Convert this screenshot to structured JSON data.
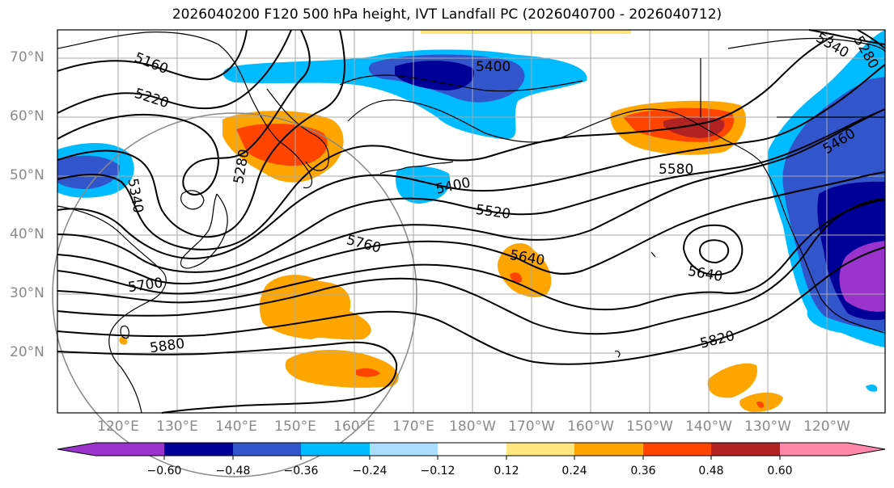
{
  "title": "2026040200 F120 500 hPa height, IVT Landfall PC (2026040700 - 2026040712)",
  "latitude_labels": [
    "70°N",
    "60°N",
    "50°N",
    "40°N",
    "30°N",
    "20°N"
  ],
  "longitude_labels": [
    "120°E",
    "130°E",
    "140°E",
    "150°E",
    "160°E",
    "170°E",
    "180°W",
    "170°W",
    "160°W",
    "150°W",
    "140°W",
    "130°W",
    "120°W"
  ],
  "contour_labels": [
    "5160",
    "5220",
    "5280",
    "5340",
    "5400",
    "5400",
    "5460",
    "5520",
    "5580",
    "5640",
    "5640",
    "5700",
    "5760",
    "5820",
    "5880",
    "5340",
    "5280"
  ],
  "colorbar": {
    "ticks": [
      "−0.60",
      "−0.48",
      "−0.36",
      "−0.24",
      "−0.12",
      "0.12",
      "0.24",
      "0.36",
      "0.48",
      "0.60"
    ],
    "colors": [
      "#9933cc",
      "#000099",
      "#3355cc",
      "#00bbff",
      "#aaddff",
      "#ffffff",
      "#ffe680",
      "#ffa500",
      "#ff4400",
      "#b22222",
      "#ff88aa"
    ]
  },
  "colors": {
    "land_outline": "#000000",
    "grid": "#aaaaaa",
    "contour": "#000000",
    "circle": "#888888"
  }
}
